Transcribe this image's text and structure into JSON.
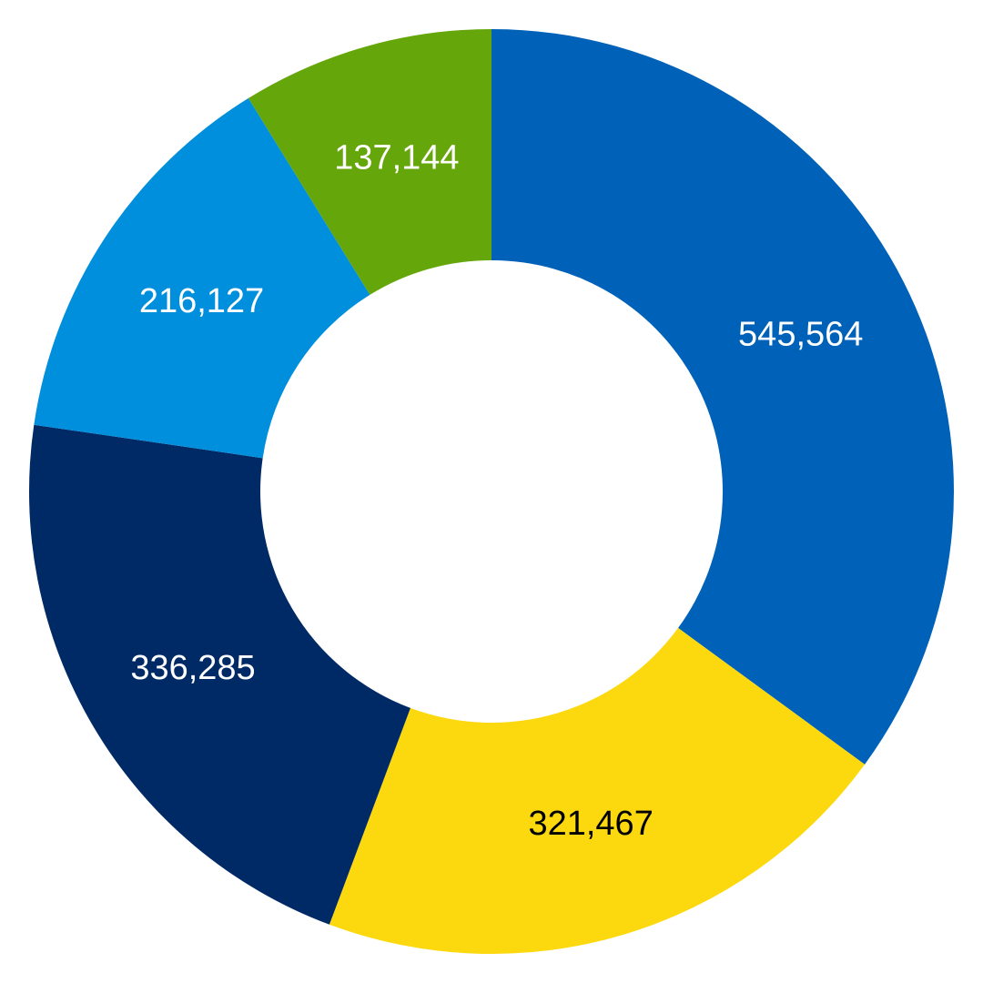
{
  "chart_data": {
    "type": "pie",
    "variant": "donut",
    "title": "",
    "legend": "none",
    "start": "top",
    "direction": "clockwise",
    "slices": [
      {
        "label": "545,564",
        "value": 545564,
        "color": "#0061B8",
        "label_color": "#FFFFFF"
      },
      {
        "label": "321,467",
        "value": 321467,
        "color": "#FCD80F",
        "label_color": "#000000"
      },
      {
        "label": "336,285",
        "value": 336285,
        "color": "#002A66",
        "label_color": "#FFFFFF"
      },
      {
        "label": "216,127",
        "value": 216127,
        "color": "#008FDD",
        "label_color": "#FFFFFF"
      },
      {
        "label": "137,144",
        "value": 137144,
        "color": "#65A70A",
        "label_color": "#FFFFFF"
      }
    ]
  }
}
